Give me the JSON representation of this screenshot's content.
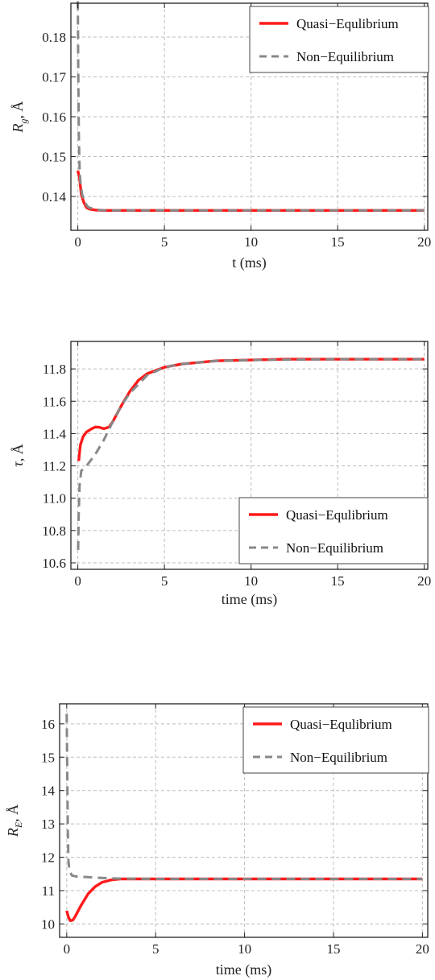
{
  "chart_data": [
    {
      "type": "line",
      "xlabel": "t (ms)",
      "ylabel": "R_g, Å",
      "ylabel_main": "R",
      "ylabel_sub": "g",
      "ylabel_rest": ", Å",
      "xlim": [
        -0.4,
        20.2
      ],
      "ylim": [
        0.1315,
        0.1885
      ],
      "x_ticks": [
        0,
        5,
        10,
        15,
        20
      ],
      "y_ticks": [
        0.14,
        0.15,
        0.16,
        0.17,
        0.18
      ],
      "y_tick_labels": [
        "0.14",
        "0.15",
        "0.16",
        "0.17",
        "0.18"
      ],
      "grid": true,
      "legend_position": "top-right",
      "series": [
        {
          "name": "Quasi−Equlibrium",
          "style": "solid",
          "color": "#ff1a1a",
          "x": [
            0,
            0.1,
            0.2,
            0.35,
            0.5,
            0.7,
            1.0,
            1.5,
            2,
            5,
            10,
            15,
            20
          ],
          "y": [
            0.1465,
            0.1445,
            0.1405,
            0.1385,
            0.1372,
            0.1368,
            0.1366,
            0.1365,
            0.1365,
            0.1365,
            0.1365,
            0.1365,
            0.1365
          ]
        },
        {
          "name": "Non−Equilibrium",
          "style": "dashed",
          "color": "#888888",
          "x": [
            0,
            0.03,
            0.06,
            0.1,
            0.15,
            0.25,
            0.4,
            0.6,
            1.0,
            1.5,
            2,
            5,
            10,
            15,
            20
          ],
          "y": [
            0.189,
            0.17,
            0.155,
            0.147,
            0.1435,
            0.1405,
            0.1385,
            0.1373,
            0.1367,
            0.1365,
            0.1365,
            0.1365,
            0.1365,
            0.1365,
            0.1365
          ]
        }
      ]
    },
    {
      "type": "line",
      "xlabel": "time (ms)",
      "ylabel": "τ, Å",
      "ylabel_main": "τ",
      "ylabel_sub": "",
      "ylabel_rest": ", Å",
      "xlim": [
        -0.4,
        20.2
      ],
      "ylim": [
        10.56,
        11.97
      ],
      "x_ticks": [
        0,
        5,
        10,
        15,
        20
      ],
      "y_ticks": [
        10.6,
        10.8,
        11.0,
        11.2,
        11.4,
        11.6,
        11.8
      ],
      "y_tick_labels": [
        "10.6",
        "10.8",
        "11.0",
        "11.2",
        "11.4",
        "11.6",
        "11.8"
      ],
      "grid": true,
      "legend_position": "bottom-right",
      "series": [
        {
          "name": "Quasi−Equlibrium",
          "style": "solid",
          "color": "#ff1a1a",
          "x": [
            0.05,
            0.15,
            0.3,
            0.5,
            0.8,
            1.0,
            1.2,
            1.5,
            1.8,
            2.0,
            2.5,
            3.0,
            3.5,
            4.0,
            5,
            6,
            7,
            8,
            10,
            12,
            15,
            20
          ],
          "y": [
            11.23,
            11.33,
            11.38,
            11.41,
            11.43,
            11.44,
            11.44,
            11.43,
            11.44,
            11.47,
            11.57,
            11.66,
            11.73,
            11.77,
            11.81,
            11.83,
            11.84,
            11.85,
            11.855,
            11.86,
            11.86,
            11.86
          ]
        },
        {
          "name": "Non−Equilibrium",
          "style": "dashed",
          "color": "#888888",
          "x": [
            0.02,
            0.05,
            0.1,
            0.2,
            0.5,
            1.0,
            1.5,
            2.0,
            2.5,
            3.0,
            4.0,
            5,
            6,
            8,
            10,
            15,
            20
          ],
          "y": [
            10.68,
            10.9,
            11.08,
            11.17,
            11.2,
            11.27,
            11.36,
            11.47,
            11.57,
            11.65,
            11.76,
            11.81,
            11.83,
            11.85,
            11.855,
            11.86,
            11.86
          ]
        }
      ]
    },
    {
      "type": "line",
      "xlabel": "time (ms)",
      "ylabel": "R_E, Å",
      "ylabel_main": "R",
      "ylabel_sub": "E",
      "ylabel_rest": ", Å",
      "xlim": [
        -0.4,
        20.3
      ],
      "ylim": [
        9.6,
        16.6
      ],
      "x_ticks": [
        0,
        5,
        10,
        15,
        20
      ],
      "y_ticks": [
        10,
        11,
        12,
        13,
        14,
        15,
        16
      ],
      "y_tick_labels": [
        "10",
        "11",
        "12",
        "13",
        "14",
        "15",
        "16"
      ],
      "grid": true,
      "legend_position": "top-right",
      "series": [
        {
          "name": "Quasi−Equlibrium",
          "style": "solid",
          "color": "#ff1a1a",
          "x": [
            0.0,
            0.1,
            0.2,
            0.35,
            0.5,
            0.8,
            1.2,
            1.6,
            2.0,
            2.5,
            3.0,
            4,
            5,
            10,
            15,
            20
          ],
          "y": [
            10.4,
            10.2,
            10.1,
            10.12,
            10.25,
            10.55,
            10.9,
            11.12,
            11.25,
            11.32,
            11.35,
            11.35,
            11.35,
            11.35,
            11.35,
            11.35
          ]
        },
        {
          "name": "Non−Equilibrium",
          "style": "dashed",
          "color": "#888888",
          "x": [
            0.0,
            0.03,
            0.06,
            0.1,
            0.15,
            0.3,
            0.6,
            1.0,
            2.0,
            3.0,
            5,
            10,
            15,
            20
          ],
          "y": [
            16.3,
            14.5,
            12.8,
            11.9,
            11.6,
            11.45,
            11.42,
            11.41,
            11.38,
            11.36,
            11.35,
            11.35,
            11.35,
            11.35
          ]
        }
      ]
    }
  ]
}
